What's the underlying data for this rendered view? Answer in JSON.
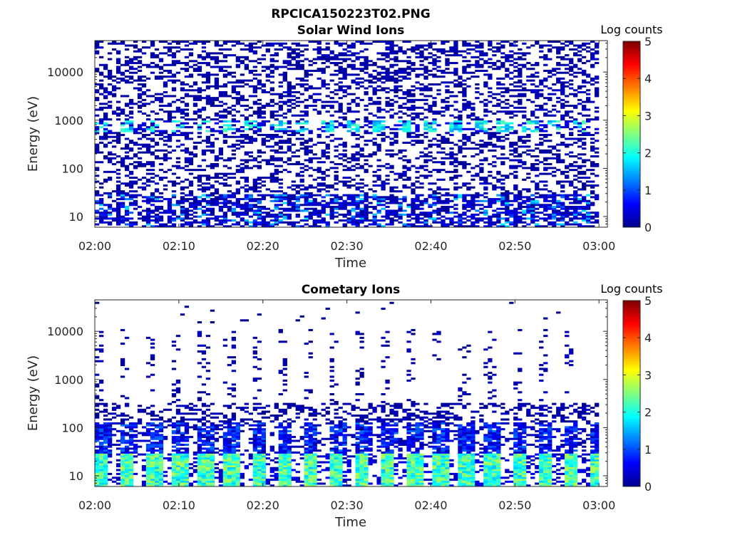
{
  "figure_title": "RPCICA150223T02.PNG",
  "chart_data": [
    {
      "type": "heatmap",
      "title": "Solar Wind Ions",
      "xlabel": "Time",
      "ylabel": "Energy (eV)",
      "x_ticks": [
        "02:00",
        "02:10",
        "02:20",
        "02:30",
        "02:40",
        "02:50",
        "03:00"
      ],
      "x_range": [
        "02:00",
        "03:01"
      ],
      "y_scale": "log",
      "y_ticks": [
        "10",
        "100",
        "1000",
        "10000"
      ],
      "y_range": [
        6,
        45000
      ],
      "colorbar": {
        "label": "Log counts",
        "ticks": [
          "0",
          "1",
          "2",
          "3",
          "4",
          "5"
        ],
        "range": [
          0,
          5
        ],
        "colormap": "jet"
      },
      "features": [
        {
          "band": "low energy 6-30 eV",
          "time_start": "02:00",
          "time_end": "03:00",
          "log_counts": "0-1.5, pulsed every ~3 min"
        },
        {
          "band": "~600-1000 eV solar wind beam",
          "time_start": "02:02",
          "time_end": "02:58",
          "log_counts": "1.5-2.3, stronger 02:25-02:50"
        },
        {
          "band": "scattered background 30-45000 eV",
          "time_start": "02:00",
          "time_end": "03:00",
          "log_counts": "~0"
        }
      ]
    },
    {
      "type": "heatmap",
      "title": "Cometary Ions",
      "xlabel": "Time",
      "ylabel": "Energy (eV)",
      "x_ticks": [
        "02:00",
        "02:10",
        "02:20",
        "02:30",
        "02:40",
        "02:50",
        "03:00"
      ],
      "x_range": [
        "02:00",
        "03:01"
      ],
      "y_scale": "log",
      "y_ticks": [
        "10",
        "100",
        "1000",
        "10000"
      ],
      "y_range": [
        6,
        45000
      ],
      "colorbar": {
        "label": "Log counts",
        "ticks": [
          "0",
          "1",
          "2",
          "3",
          "4",
          "5"
        ],
        "range": [
          0,
          5
        ],
        "colormap": "jet"
      },
      "features": [
        {
          "band": "low energy 6-30 eV",
          "time_start": "02:00",
          "time_end": "03:00",
          "log_counts": "1.5-2.8, pulsed every ~3 min"
        },
        {
          "band": "30-300 eV",
          "time_start": "02:00",
          "time_end": "03:00",
          "log_counts": "0-1"
        },
        {
          "band": "sparse 300-10000 eV",
          "time_start": "02:01",
          "time_end": "02:57",
          "log_counts": "~0"
        }
      ]
    }
  ],
  "colors": {
    "background": "#ffffff",
    "axis": "#262626"
  }
}
